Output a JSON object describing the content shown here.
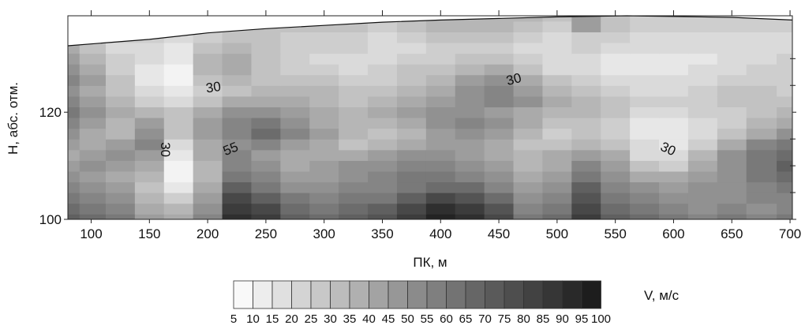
{
  "chart_data": {
    "type": "heatmap",
    "xlabel": "ПК, м",
    "ylabel": "H, абс. отм.",
    "xlim": [
      80,
      702
    ],
    "ylim": [
      100,
      138
    ],
    "x_ticks": [
      100,
      150,
      200,
      250,
      300,
      350,
      400,
      450,
      500,
      550,
      600,
      650,
      700
    ],
    "y_ticks": [
      100,
      120
    ],
    "surface": [
      [
        80,
        132.4
      ],
      [
        150,
        133.6
      ],
      [
        200,
        134.8
      ],
      [
        250,
        135.6
      ],
      [
        300,
        136.2
      ],
      [
        350,
        136.8
      ],
      [
        400,
        137.2
      ],
      [
        450,
        137.5
      ],
      [
        500,
        137.8
      ],
      [
        560,
        138.0
      ],
      [
        650,
        137.7
      ],
      [
        702,
        137.2
      ]
    ],
    "grid": {
      "x": [
        80,
        100,
        125,
        150,
        175,
        200,
        225,
        250,
        275,
        300,
        325,
        350,
        375,
        400,
        425,
        450,
        475,
        500,
        525,
        550,
        575,
        600,
        625,
        650,
        675,
        702
      ],
      "y": [
        100,
        102,
        104,
        106,
        108,
        110,
        112,
        114,
        116,
        118,
        120,
        122,
        124,
        126,
        128,
        130,
        132,
        134,
        136,
        138
      ],
      "values": [
        [
          70,
          65,
          60,
          45,
          40,
          55,
          90,
          85,
          70,
          65,
          70,
          75,
          85,
          95,
          90,
          80,
          60,
          65,
          85,
          70,
          65,
          60,
          55,
          60,
          55,
          60
        ],
        [
          65,
          60,
          55,
          40,
          35,
          50,
          85,
          80,
          65,
          60,
          65,
          70,
          80,
          90,
          85,
          75,
          55,
          60,
          80,
          65,
          60,
          55,
          50,
          55,
          50,
          55
        ],
        [
          60,
          55,
          50,
          35,
          25,
          45,
          80,
          70,
          60,
          55,
          60,
          60,
          70,
          80,
          75,
          65,
          50,
          55,
          75,
          60,
          55,
          50,
          50,
          50,
          55,
          55
        ],
        [
          55,
          50,
          45,
          30,
          15,
          40,
          70,
          60,
          50,
          50,
          55,
          55,
          60,
          65,
          65,
          55,
          45,
          50,
          70,
          55,
          50,
          45,
          50,
          50,
          55,
          60
        ],
        [
          50,
          45,
          40,
          35,
          10,
          35,
          60,
          55,
          45,
          45,
          50,
          55,
          60,
          60,
          55,
          50,
          40,
          45,
          60,
          50,
          40,
          40,
          45,
          50,
          60,
          65
        ],
        [
          45,
          50,
          45,
          40,
          10,
          35,
          55,
          50,
          40,
          45,
          50,
          50,
          55,
          55,
          50,
          45,
          35,
          40,
          55,
          45,
          30,
          25,
          40,
          50,
          60,
          70
        ],
        [
          40,
          45,
          50,
          45,
          15,
          40,
          55,
          45,
          40,
          40,
          40,
          45,
          50,
          50,
          45,
          40,
          35,
          40,
          45,
          40,
          20,
          20,
          35,
          50,
          60,
          65
        ],
        [
          45,
          40,
          45,
          55,
          20,
          40,
          50,
          55,
          45,
          40,
          30,
          35,
          40,
          45,
          45,
          40,
          30,
          30,
          35,
          30,
          20,
          15,
          25,
          40,
          55,
          60
        ],
        [
          50,
          40,
          35,
          50,
          30,
          45,
          55,
          65,
          55,
          45,
          35,
          30,
          35,
          45,
          50,
          45,
          35,
          25,
          30,
          25,
          15,
          15,
          20,
          30,
          40,
          50
        ],
        [
          55,
          45,
          35,
          45,
          30,
          45,
          55,
          60,
          50,
          40,
          35,
          35,
          40,
          50,
          55,
          50,
          40,
          30,
          30,
          25,
          15,
          15,
          20,
          25,
          35,
          40
        ],
        [
          60,
          50,
          40,
          35,
          30,
          40,
          50,
          50,
          45,
          40,
          35,
          40,
          45,
          50,
          50,
          45,
          40,
          35,
          35,
          30,
          20,
          20,
          25,
          25,
          30,
          35
        ],
        [
          55,
          45,
          35,
          25,
          20,
          30,
          40,
          40,
          40,
          35,
          30,
          35,
          40,
          45,
          50,
          55,
          50,
          40,
          35,
          30,
          25,
          25,
          25,
          30,
          30,
          30
        ],
        [
          50,
          40,
          30,
          20,
          15,
          25,
          30,
          35,
          35,
          35,
          30,
          30,
          35,
          40,
          50,
          55,
          45,
          35,
          30,
          25,
          20,
          20,
          25,
          30,
          30,
          25
        ],
        [
          55,
          45,
          30,
          15,
          10,
          30,
          35,
          30,
          30,
          30,
          25,
          25,
          30,
          35,
          45,
          50,
          40,
          30,
          25,
          20,
          20,
          20,
          20,
          25,
          25,
          25
        ],
        [
          50,
          40,
          25,
          15,
          10,
          35,
          40,
          30,
          25,
          25,
          20,
          25,
          30,
          30,
          35,
          40,
          30,
          20,
          20,
          15,
          15,
          15,
          20,
          20,
          25,
          25
        ],
        [
          45,
          35,
          25,
          20,
          15,
          35,
          40,
          30,
          25,
          20,
          20,
          20,
          25,
          25,
          30,
          30,
          25,
          20,
          20,
          15,
          15,
          15,
          15,
          20,
          20,
          25
        ],
        [
          40,
          30,
          20,
          20,
          15,
          30,
          35,
          30,
          25,
          25,
          25,
          20,
          20,
          25,
          25,
          25,
          20,
          20,
          25,
          20,
          20,
          20,
          20,
          20,
          20,
          20
        ],
        [
          40,
          30,
          25,
          25,
          20,
          25,
          30,
          30,
          25,
          25,
          25,
          20,
          25,
          30,
          30,
          30,
          25,
          20,
          25,
          25,
          20,
          20,
          20,
          20,
          20,
          20
        ],
        [
          40,
          35,
          30,
          30,
          25,
          30,
          30,
          30,
          30,
          30,
          30,
          25,
          30,
          35,
          35,
          35,
          30,
          25,
          45,
          30,
          25,
          25,
          25,
          25,
          25,
          25
        ],
        [
          40,
          35,
          30,
          30,
          25,
          30,
          30,
          30,
          30,
          30,
          30,
          30,
          30,
          35,
          35,
          35,
          35,
          30,
          45,
          30,
          25,
          25,
          25,
          25,
          25,
          25
        ]
      ]
    },
    "contour_labels": [
      {
        "text": "30",
        "x": 205,
        "y": 124.5,
        "angle": -8
      },
      {
        "text": "30",
        "x": 163,
        "y": 113,
        "angle": 90
      },
      {
        "text": "55",
        "x": 220,
        "y": 113,
        "angle": -22
      },
      {
        "text": "30",
        "x": 463,
        "y": 126,
        "angle": -15
      },
      {
        "text": "30",
        "x": 595,
        "y": 113,
        "angle": 25
      }
    ],
    "legend": {
      "label": "V, м/с",
      "values": [
        "5",
        "10",
        "15",
        "20",
        "25",
        "30",
        "35",
        "40",
        "45",
        "50",
        "55",
        "60",
        "65",
        "70",
        "75",
        "80",
        "85",
        "90",
        "95",
        "100"
      ],
      "placement": "bottom"
    }
  }
}
